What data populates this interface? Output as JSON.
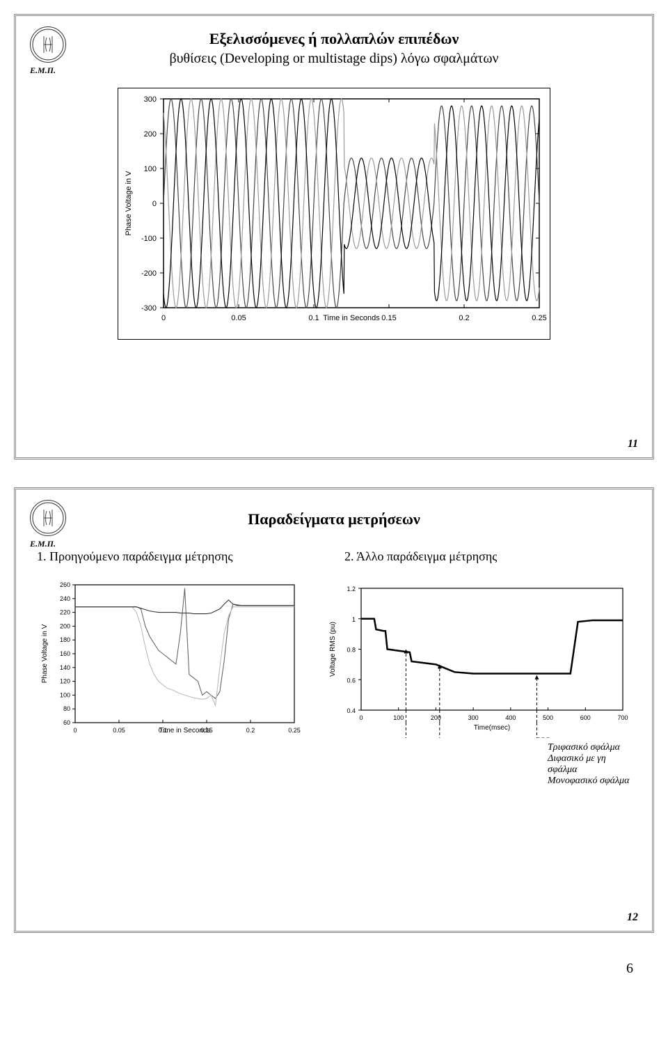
{
  "slide1": {
    "title": "Εξελισσόμενες ή πολλαπλών επιπέδων",
    "subtitle": "βυθίσεις (Developing or multistage dips) λόγω σφαλμάτων",
    "logo_text": "Ε.Μ.Π.",
    "chart": {
      "type": "line",
      "ylabel": "Phase Voltage in V",
      "xlabel": "Time in Seconds",
      "ylim": [
        -300,
        300
      ],
      "ytick_step": 100,
      "xlim": [
        0,
        0.25
      ],
      "xticks": [
        0,
        0.05,
        0.1,
        0.15,
        0.2,
        0.25
      ],
      "label_fontsize": 11,
      "tick_fontsize": 11,
      "background_color": "#ffffff",
      "border_color": "#000000",
      "series_colors": [
        "#444444",
        "#999999",
        "#000000"
      ],
      "line_width": 1.2,
      "frequency_hz": 50,
      "segments": [
        {
          "t0": 0.0,
          "t1": 0.07,
          "amp": 300
        },
        {
          "t0": 0.07,
          "t1": 0.12,
          "amp": 300
        },
        {
          "t0": 0.12,
          "t1": 0.18,
          "amp": 130
        },
        {
          "t0": 0.18,
          "t1": 0.25,
          "amp": 280
        }
      ],
      "phase_offsets_deg": [
        0,
        120,
        240
      ]
    },
    "slide_number": "11"
  },
  "slide2": {
    "title": "Παραδείγματα μετρήσεων",
    "logo_text": "Ε.Μ.Π.",
    "caption_left": "1. Προηγούμενο παράδειγμα μέτρησης",
    "caption_right": "2. Άλλο παράδειγμα μέτρησης",
    "chart_left": {
      "type": "line",
      "ylabel": "Phase Voltage in V",
      "xlabel": "Time in Seconds",
      "ylim": [
        60,
        260
      ],
      "ytick_step": 20,
      "xlim": [
        0,
        0.25
      ],
      "xticks": [
        0,
        0.05,
        0.1,
        0.15,
        0.2,
        0.25
      ],
      "label_fontsize": 10,
      "tick_fontsize": 9,
      "background_color": "#ffffff",
      "border_color": "#000000",
      "series_colors": [
        "#666666",
        "#bbbbbb",
        "#333333"
      ],
      "line_width": 1.1,
      "series": [
        {
          "points": [
            [
              0,
              228
            ],
            [
              0.065,
              228
            ],
            [
              0.07,
              228
            ],
            [
              0.075,
              225
            ],
            [
              0.08,
              200
            ],
            [
              0.085,
              185
            ],
            [
              0.09,
              175
            ],
            [
              0.095,
              165
            ],
            [
              0.1,
              160
            ],
            [
              0.105,
              155
            ],
            [
              0.11,
              150
            ],
            [
              0.115,
              145
            ],
            [
              0.12,
              190
            ],
            [
              0.125,
              255
            ],
            [
              0.13,
              130
            ],
            [
              0.135,
              125
            ],
            [
              0.14,
              120
            ],
            [
              0.145,
              100
            ],
            [
              0.15,
              105
            ],
            [
              0.155,
              100
            ],
            [
              0.16,
              95
            ],
            [
              0.165,
              105
            ],
            [
              0.17,
              150
            ],
            [
              0.175,
              210
            ],
            [
              0.18,
              232
            ],
            [
              0.19,
              230
            ],
            [
              0.25,
              230
            ]
          ]
        },
        {
          "points": [
            [
              0,
              228
            ],
            [
              0.065,
              228
            ],
            [
              0.07,
              220
            ],
            [
              0.075,
              200
            ],
            [
              0.08,
              170
            ],
            [
              0.085,
              145
            ],
            [
              0.09,
              130
            ],
            [
              0.095,
              120
            ],
            [
              0.1,
              115
            ],
            [
              0.105,
              110
            ],
            [
              0.11,
              108
            ],
            [
              0.115,
              105
            ],
            [
              0.12,
              102
            ],
            [
              0.125,
              100
            ],
            [
              0.13,
              98
            ],
            [
              0.135,
              96
            ],
            [
              0.14,
              95
            ],
            [
              0.145,
              94
            ],
            [
              0.15,
              95
            ],
            [
              0.155,
              100
            ],
            [
              0.16,
              85
            ],
            [
              0.165,
              140
            ],
            [
              0.17,
              190
            ],
            [
              0.175,
              215
            ],
            [
              0.18,
              228
            ],
            [
              0.25,
              228
            ]
          ]
        },
        {
          "points": [
            [
              0,
              228
            ],
            [
              0.07,
              228
            ],
            [
              0.075,
              226
            ],
            [
              0.08,
              224
            ],
            [
              0.085,
              222
            ],
            [
              0.09,
              221
            ],
            [
              0.095,
              220
            ],
            [
              0.1,
              220
            ],
            [
              0.105,
              220
            ],
            [
              0.11,
              220
            ],
            [
              0.115,
              220
            ],
            [
              0.12,
              219
            ],
            [
              0.125,
              219
            ],
            [
              0.13,
              219
            ],
            [
              0.135,
              218
            ],
            [
              0.14,
              218
            ],
            [
              0.145,
              218
            ],
            [
              0.15,
              218
            ],
            [
              0.155,
              219
            ],
            [
              0.16,
              222
            ],
            [
              0.165,
              225
            ],
            [
              0.17,
              232
            ],
            [
              0.175,
              238
            ],
            [
              0.18,
              232
            ],
            [
              0.185,
              230
            ],
            [
              0.25,
              230
            ]
          ]
        }
      ]
    },
    "chart_right": {
      "type": "line",
      "ylabel": "Voltage RMS (pu)",
      "xlabel": "Time(msec)",
      "ylim": [
        0.4,
        1.2
      ],
      "yticks": [
        0.4,
        0.6,
        0.8,
        1,
        1.2
      ],
      "xlim": [
        0,
        700
      ],
      "xtick_step": 100,
      "label_fontsize": 10,
      "tick_fontsize": 9,
      "background_color": "#ffffff",
      "border_color": "#000000",
      "series_color": "#000000",
      "line_width": 2.5,
      "points": [
        [
          0,
          1.0
        ],
        [
          35,
          1.0
        ],
        [
          40,
          0.93
        ],
        [
          60,
          0.92
        ],
        [
          65,
          0.92
        ],
        [
          70,
          0.8
        ],
        [
          130,
          0.78
        ],
        [
          135,
          0.72
        ],
        [
          200,
          0.7
        ],
        [
          250,
          0.65
        ],
        [
          300,
          0.64
        ],
        [
          400,
          0.64
        ],
        [
          500,
          0.64
        ],
        [
          560,
          0.64
        ],
        [
          580,
          0.98
        ],
        [
          620,
          0.99
        ],
        [
          700,
          0.99
        ]
      ],
      "arrows": [
        {
          "x": 120,
          "y_from": 0.4,
          "y_to": 0.8
        },
        {
          "x": 210,
          "y_from": 0.4,
          "y_to": 0.7
        },
        {
          "x": 470,
          "y_from": 0.4,
          "y_to": 0.63
        }
      ],
      "arrow_color": "#000000",
      "arrow_dash": "4,3"
    },
    "legend_items": [
      "Τριφασικό σφάλμα",
      "Διφασικό με γη σφάλμα",
      "Μονοφασικό σφάλμα"
    ],
    "legend_arrow_targets_x": [
      470,
      210,
      120
    ],
    "slide_number": "12"
  },
  "page_number": "6"
}
